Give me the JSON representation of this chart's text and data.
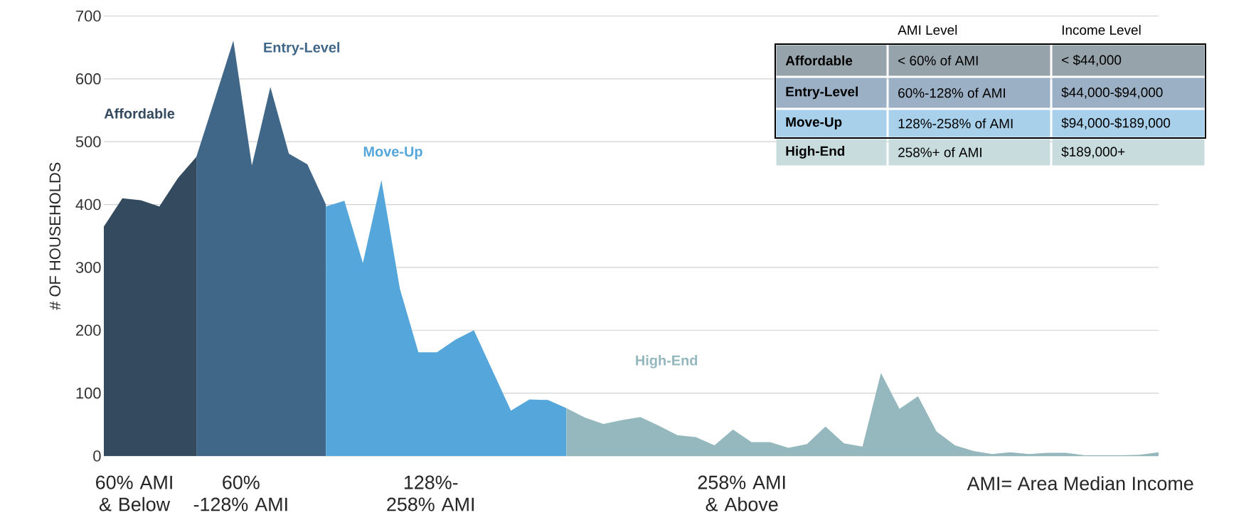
{
  "chart_data": [
    {
      "type": "area",
      "ylabel": "# OF HOUSEHOLDS",
      "ylim": [
        0,
        700
      ],
      "yticks": [
        0,
        100,
        200,
        300,
        400,
        500,
        600,
        700
      ],
      "grid": "y",
      "categories": [
        null,
        null,
        null,
        null,
        null,
        null,
        null,
        null,
        null,
        null,
        null,
        null,
        null,
        null,
        null,
        null,
        null,
        null,
        null,
        null,
        null,
        null,
        null,
        null,
        null,
        null,
        null,
        null,
        null,
        null,
        null,
        null,
        null,
        null,
        null,
        null,
        null,
        null,
        null,
        null,
        null,
        null,
        null,
        null,
        null,
        null,
        null,
        null,
        null,
        null,
        null,
        null,
        null,
        null,
        null,
        null,
        null,
        null
      ],
      "annotations": [
        "60% AMI & Below",
        "60% -128% AMI",
        "128%-258% AMI",
        "258% AMI & Above",
        "AMI= Area Median Income"
      ],
      "series": [
        {
          "name": "Affordable",
          "color": "#344a5e",
          "values": [
            365,
            410,
            407,
            397,
            442,
            476,
            null,
            null,
            null,
            null,
            null,
            null,
            null,
            null,
            null,
            null,
            null,
            null,
            null,
            null,
            null,
            null,
            null,
            null,
            null,
            null,
            null,
            null,
            null,
            null,
            null,
            null,
            null,
            null,
            null,
            null,
            null,
            null,
            null,
            null,
            null,
            null,
            null,
            null,
            null,
            null,
            null,
            null,
            null,
            null,
            null,
            null,
            null,
            null,
            null,
            null,
            null,
            null
          ]
        },
        {
          "name": "Entry-Level",
          "color": "#416788",
          "values": [
            null,
            null,
            null,
            null,
            null,
            476,
            568,
            661,
            462,
            587,
            481,
            464,
            400,
            null,
            null,
            null,
            null,
            null,
            null,
            null,
            null,
            null,
            null,
            null,
            null,
            null,
            null,
            null,
            null,
            null,
            null,
            null,
            null,
            null,
            null,
            null,
            null,
            null,
            null,
            null,
            null,
            null,
            null,
            null,
            null,
            null,
            null,
            null,
            null,
            null,
            null,
            null,
            null,
            null,
            null,
            null,
            null,
            null
          ]
        },
        {
          "name": "Move-Up",
          "color": "#54a6db",
          "values": [
            null,
            null,
            null,
            null,
            null,
            null,
            null,
            null,
            null,
            null,
            null,
            null,
            397,
            406,
            307,
            439,
            266,
            165,
            165,
            185,
            200,
            136,
            72,
            90,
            89,
            76,
            null,
            null,
            null,
            null,
            null,
            null,
            null,
            null,
            null,
            null,
            null,
            null,
            null,
            null,
            null,
            null,
            null,
            null,
            null,
            null,
            null,
            null,
            null,
            null,
            null,
            null,
            null,
            null,
            null,
            null,
            null,
            null
          ]
        },
        {
          "name": "High-End",
          "color": "#94b8bd",
          "values": [
            null,
            null,
            null,
            null,
            null,
            null,
            null,
            null,
            null,
            null,
            null,
            null,
            null,
            null,
            null,
            null,
            null,
            null,
            null,
            null,
            null,
            null,
            null,
            null,
            null,
            76,
            61,
            51,
            57,
            62,
            48,
            33,
            30,
            17,
            42,
            22,
            22,
            13,
            19,
            47,
            20,
            15,
            132,
            75,
            95,
            39,
            17,
            8,
            3,
            6,
            3,
            5,
            5,
            1,
            1,
            1,
            2,
            6
          ]
        }
      ]
    },
    {
      "type": "other",
      "annotations": [
        "AMI Level",
        "Income Level",
        "Affordable",
        "< 60% of AMI",
        "< $44,000",
        "Entry-Level",
        "60%-128% of AMI",
        "$44,000-$94,000",
        "Move-Up",
        "128%-258% of AMI",
        "$94,000-$189,000",
        "High-End",
        "258%+ of AMI",
        "$189,000+"
      ]
    }
  ]
}
